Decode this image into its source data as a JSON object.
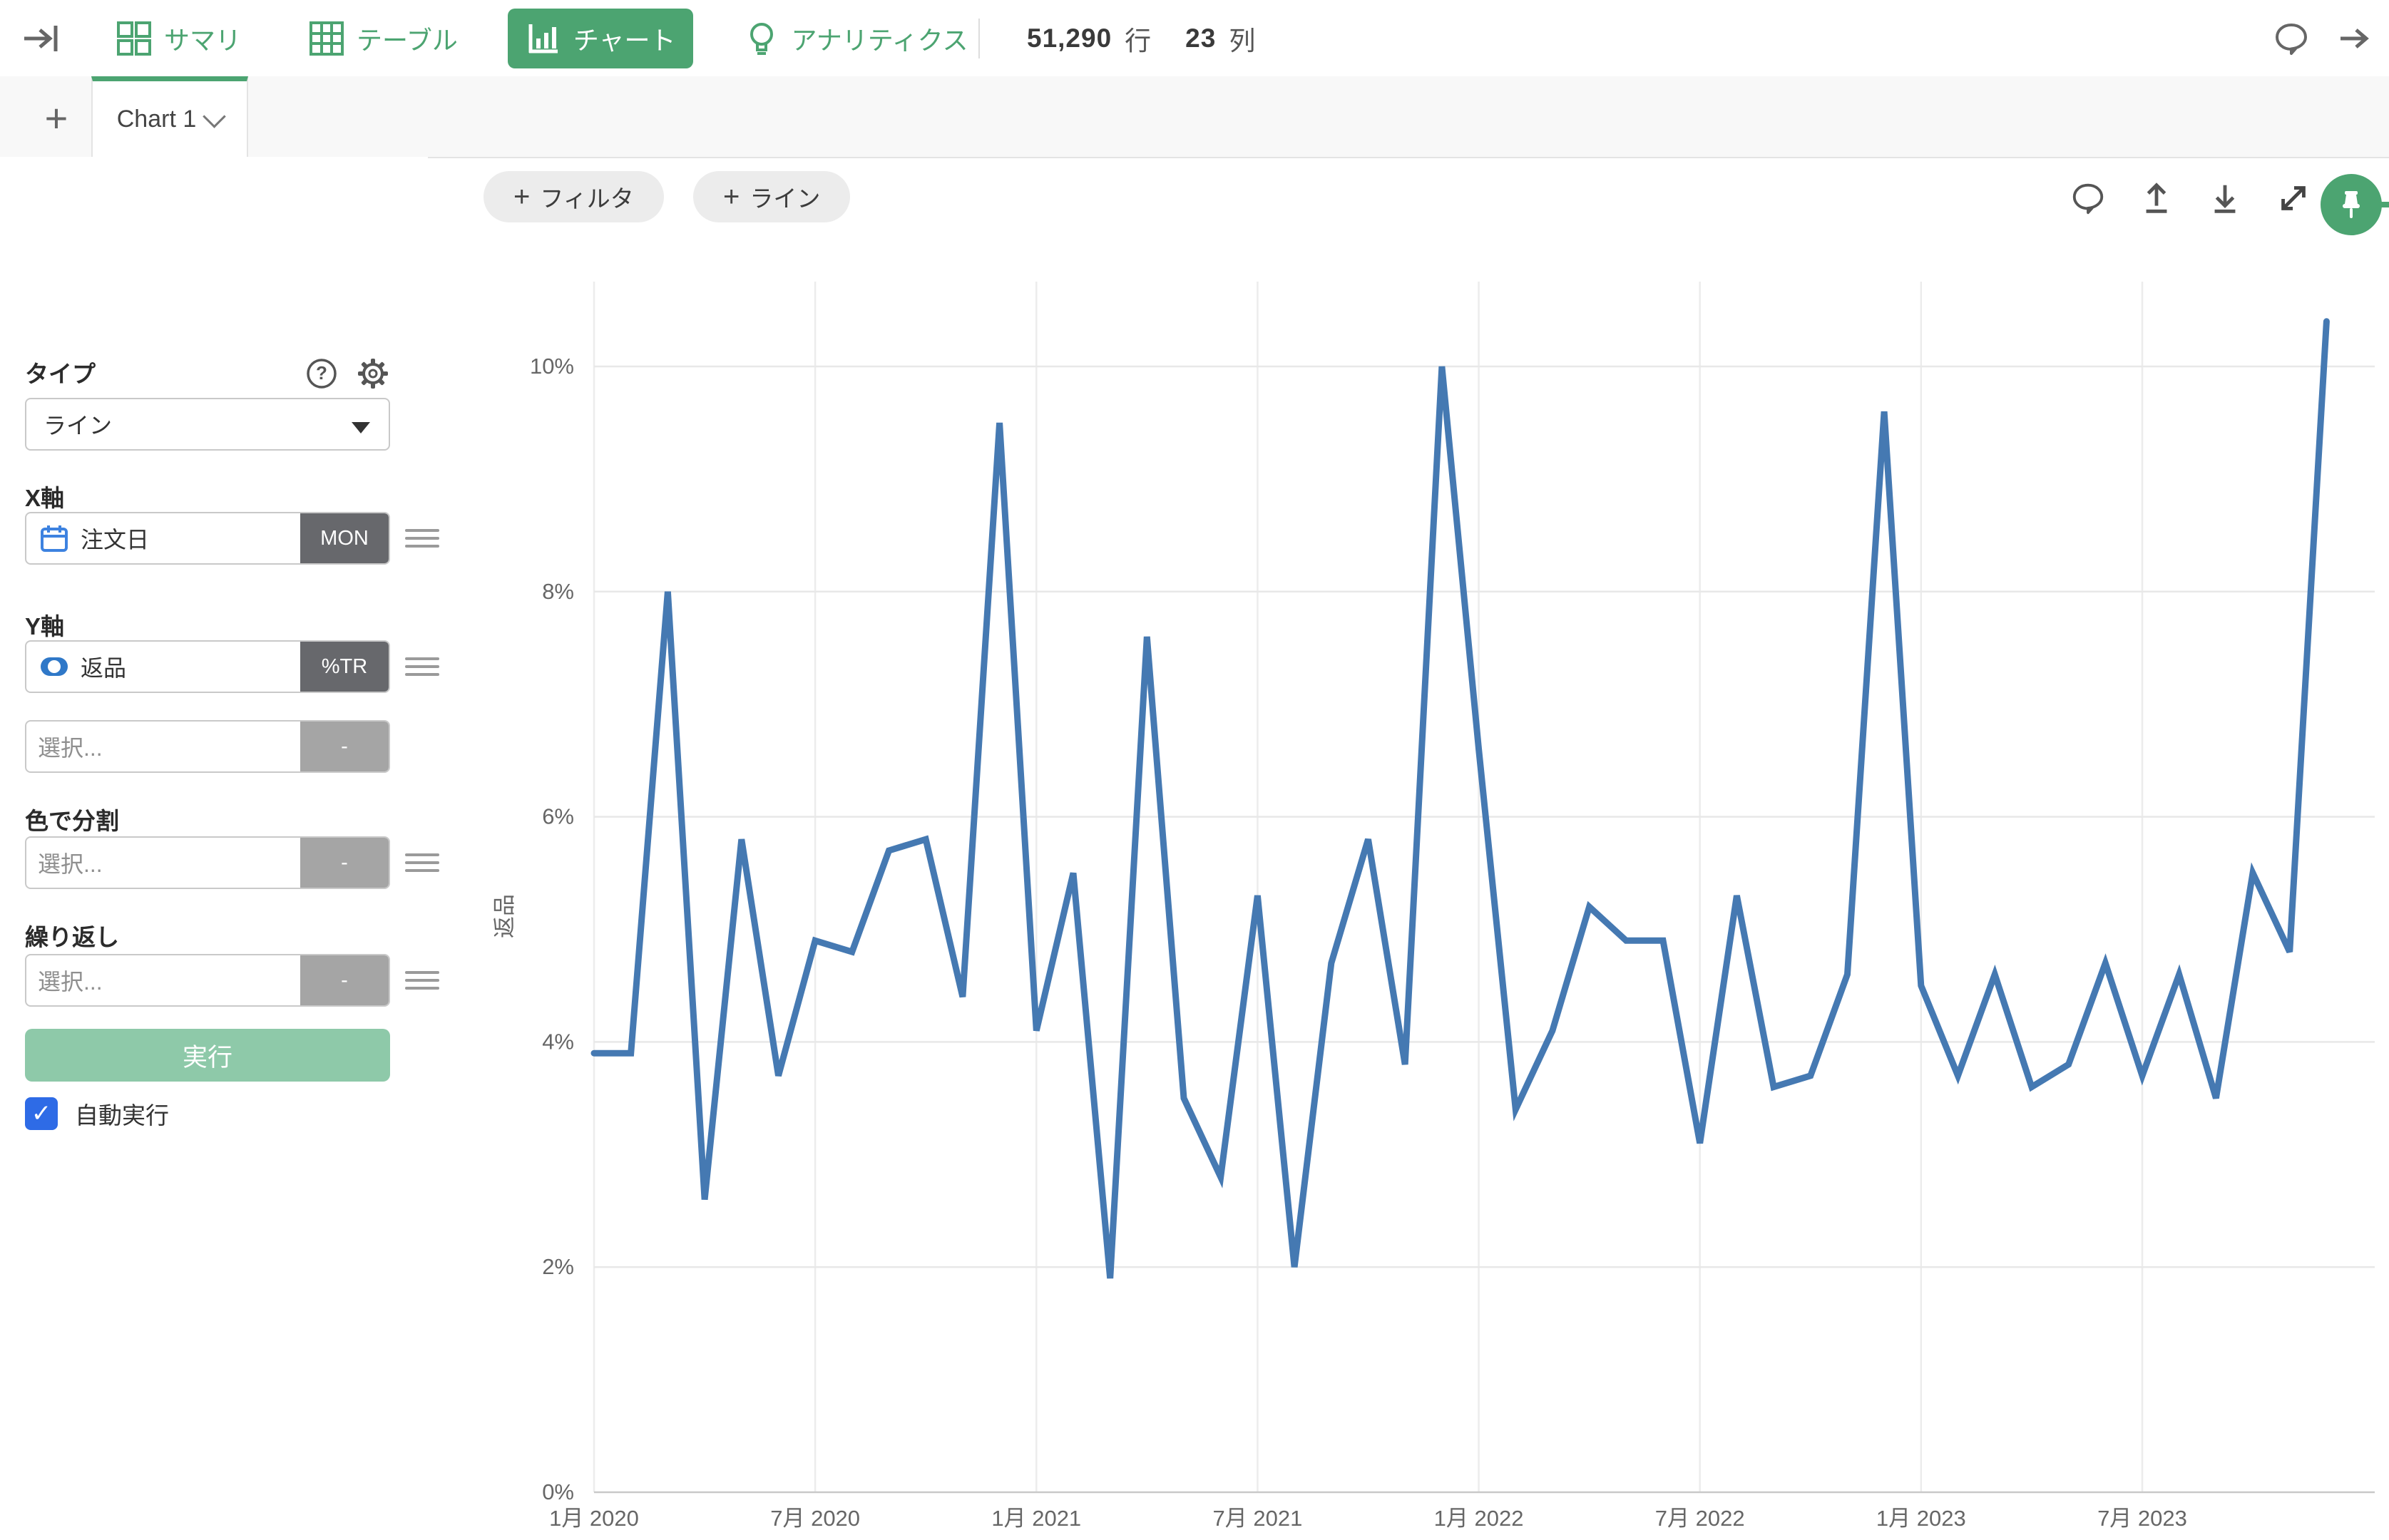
{
  "header": {
    "nav_tabs": [
      {
        "label": "サマリ"
      },
      {
        "label": "テーブル"
      },
      {
        "label": "チャート"
      },
      {
        "label": "アナリティクス"
      }
    ],
    "row_count": "51,290",
    "row_unit": "行",
    "column_count": "23",
    "column_unit": "列"
  },
  "chart_tab_bar": {
    "add_label": "+",
    "active_tab": "Chart 1"
  },
  "sidebar": {
    "type_label": "タイプ",
    "type_value": "ライン",
    "x_axis_label": "X軸",
    "x_field": "注文日",
    "x_badge": "MON",
    "y_axis_label": "Y軸",
    "y_field": "返品",
    "y_badge": "%TR",
    "select_placeholder": "選択...",
    "empty_badge": "-",
    "split_color_label": "色で分割",
    "repeat_label": "繰り返し",
    "run_button": "実行",
    "autorun_label": "自動実行",
    "checkbox_glyph": "✓"
  },
  "chart_toolbar": {
    "plus": "+",
    "filter_button": "フィルタ",
    "line_button": "ライン"
  },
  "chart_data": {
    "type": "line",
    "title": "",
    "ylabel": "返品",
    "x_unit": "month",
    "x": [
      "2020-01",
      "2020-02",
      "2020-03",
      "2020-04",
      "2020-05",
      "2020-06",
      "2020-07",
      "2020-08",
      "2020-09",
      "2020-10",
      "2020-11",
      "2020-12",
      "2021-01",
      "2021-02",
      "2021-03",
      "2021-04",
      "2021-05",
      "2021-06",
      "2021-07",
      "2021-08",
      "2021-09",
      "2021-10",
      "2021-11",
      "2021-12",
      "2022-01",
      "2022-02",
      "2022-03",
      "2022-04",
      "2022-05",
      "2022-06",
      "2022-07",
      "2022-08",
      "2022-09",
      "2022-10",
      "2022-11",
      "2022-12",
      "2023-01",
      "2023-02",
      "2023-03",
      "2023-04",
      "2023-05",
      "2023-06",
      "2023-07",
      "2023-08",
      "2023-09",
      "2023-10",
      "2023-11",
      "2023-12"
    ],
    "values": [
      3.9,
      3.9,
      8.0,
      2.6,
      5.8,
      3.7,
      4.9,
      4.8,
      5.7,
      5.8,
      4.4,
      9.5,
      4.1,
      5.5,
      1.9,
      7.6,
      3.5,
      2.8,
      5.3,
      2.0,
      4.7,
      5.8,
      3.8,
      10.0,
      6.6,
      3.4,
      4.1,
      5.2,
      4.9,
      4.9,
      3.1,
      5.3,
      3.6,
      3.7,
      4.6,
      9.6,
      4.5,
      3.7,
      4.6,
      3.6,
      3.8,
      4.7,
      3.7,
      4.6,
      3.5,
      5.5,
      4.8,
      10.4
    ],
    "x_tick_labels": [
      "1月 2020",
      "7月 2020",
      "1月 2021",
      "7月 2021",
      "1月 2022",
      "7月 2022",
      "1月 2023",
      "7月 2023"
    ],
    "y_tick_labels": [
      "0%",
      "2%",
      "4%",
      "6%",
      "8%",
      "10%"
    ],
    "ylim": [
      0,
      10.7
    ],
    "grid": true,
    "legend": "none",
    "line_color": "#4579b2"
  },
  "colors": {
    "accent_green": "#4ca471",
    "run_button_green": "#8ec9a9",
    "badge_dark": "#67686c",
    "badge_light": "#a5a5a5",
    "checkbox_blue": "#2e6be6",
    "field_icon_blue": "#3d82e0",
    "line_blue": "#4579b2"
  }
}
